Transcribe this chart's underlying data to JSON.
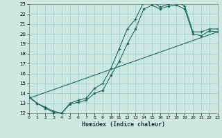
{
  "xlabel": "Humidex (Indice chaleur)",
  "xlim": [
    0,
    23
  ],
  "ylim": [
    12,
    23
  ],
  "xticks": [
    0,
    1,
    2,
    3,
    4,
    5,
    6,
    7,
    8,
    9,
    10,
    11,
    12,
    13,
    14,
    15,
    16,
    17,
    18,
    19,
    20,
    21,
    22,
    23
  ],
  "yticks": [
    12,
    13,
    14,
    15,
    16,
    17,
    18,
    19,
    20,
    21,
    22,
    23
  ],
  "background_color": "#cce8e0",
  "grid_color": "#99cccc",
  "line_color": "#1a6b5a",
  "line1_x": [
    0,
    1,
    2,
    3,
    4,
    5,
    6,
    7,
    8,
    9,
    10,
    11,
    12,
    13,
    14,
    15,
    16,
    17,
    18,
    19,
    20,
    21,
    22,
    23
  ],
  "line1_y": [
    13.7,
    13.0,
    12.6,
    12.2,
    12.0,
    13.0,
    13.3,
    13.5,
    14.5,
    15.0,
    16.5,
    18.5,
    20.5,
    21.5,
    23.2,
    23.3,
    22.7,
    23.0,
    23.3,
    22.8,
    20.2,
    20.2,
    20.5,
    20.5
  ],
  "line2_x": [
    0,
    1,
    2,
    3,
    4,
    5,
    6,
    7,
    8,
    9,
    10,
    11,
    12,
    13,
    14,
    15,
    16,
    17,
    18,
    19,
    20,
    21,
    22,
    23
  ],
  "line2_y": [
    13.6,
    13.0,
    12.5,
    12.1,
    12.0,
    12.9,
    13.1,
    13.3,
    14.0,
    14.3,
    15.8,
    17.2,
    19.0,
    20.5,
    22.5,
    22.9,
    22.5,
    22.8,
    22.9,
    22.5,
    20.0,
    19.8,
    20.3,
    20.2
  ],
  "line3_x": [
    0,
    23
  ],
  "line3_y": [
    13.5,
    20.2
  ]
}
